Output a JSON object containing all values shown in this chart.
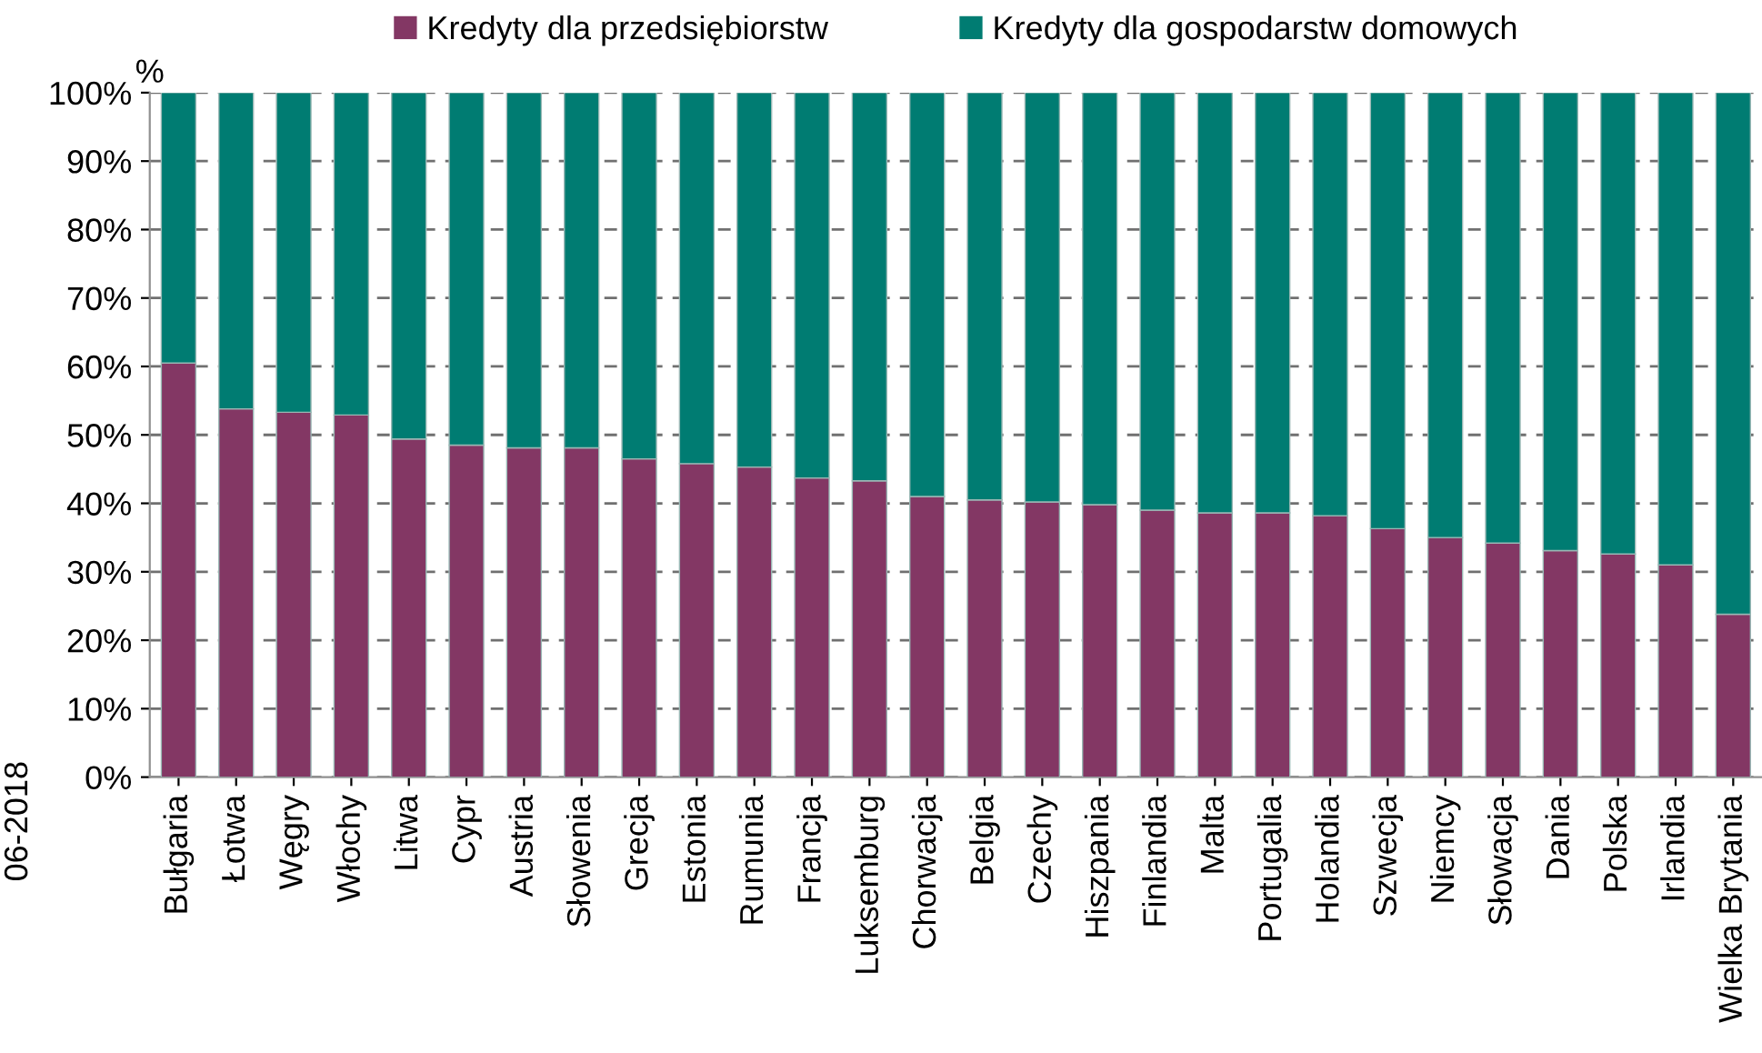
{
  "chart_data": {
    "type": "bar",
    "stacked": true,
    "ylabel": "%",
    "categories": [
      "Bułgaria",
      "Łotwa",
      "Węgry",
      "Włochy",
      "Litwa",
      "Cypr",
      "Austria",
      "Słowenia",
      "Grecja",
      "Estonia",
      "Rumunia",
      "Francja",
      "Luksemburg",
      "Chorwacja",
      "Belgia",
      "Czechy",
      "Hiszpania",
      "Finlandia",
      "Malta",
      "Portugalia",
      "Holandia",
      "Szwecja",
      "Niemcy",
      "Słowacja",
      "Dania",
      "Polska",
      "Irlandia",
      "Wielka Brytania"
    ],
    "series": [
      {
        "name": "Kredyty dla przedsiębiorstw",
        "color": "#833764",
        "values": [
          60.5,
          53.8,
          53.3,
          52.9,
          49.4,
          48.5,
          48.1,
          48.1,
          46.5,
          45.8,
          45.3,
          43.7,
          43.3,
          41.0,
          40.5,
          40.2,
          39.8,
          39.0,
          38.6,
          38.6,
          38.2,
          36.3,
          35.0,
          34.2,
          33.1,
          32.6,
          31.0,
          23.8
        ]
      },
      {
        "name": "Kredyty dla gospodarstw domowych",
        "color": "#007c72",
        "values": [
          39.5,
          46.2,
          46.7,
          47.1,
          50.6,
          51.5,
          51.9,
          51.9,
          53.5,
          54.2,
          54.7,
          56.3,
          56.7,
          59.0,
          59.5,
          59.8,
          60.2,
          61.0,
          61.4,
          61.4,
          61.8,
          63.7,
          65.0,
          65.8,
          66.9,
          67.4,
          69.0,
          76.2
        ]
      }
    ],
    "ylim": [
      0,
      100
    ],
    "yticks": [
      {
        "value": 0,
        "label": "0%"
      },
      {
        "value": 10,
        "label": "10%"
      },
      {
        "value": 20,
        "label": "20%"
      },
      {
        "value": 30,
        "label": "30%"
      },
      {
        "value": 40,
        "label": "40%"
      },
      {
        "value": 50,
        "label": "50%"
      },
      {
        "value": 60,
        "label": "60%"
      },
      {
        "value": 70,
        "label": "70%"
      },
      {
        "value": 80,
        "label": "80%"
      },
      {
        "value": 90,
        "label": "90%"
      },
      {
        "value": 100,
        "label": "100%"
      }
    ],
    "grid": "y",
    "legend": "top",
    "annotations": [
      "06-2018"
    ]
  }
}
